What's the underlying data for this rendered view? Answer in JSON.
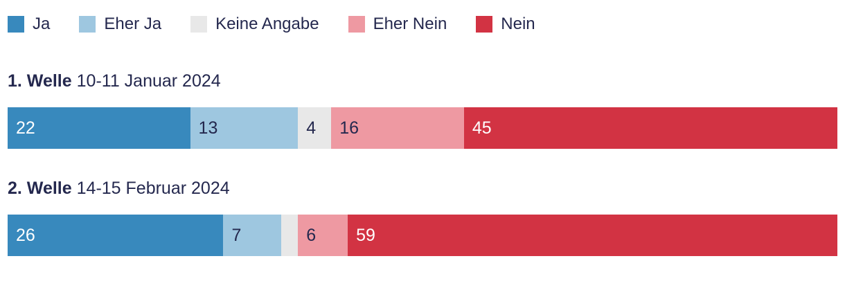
{
  "colors": {
    "text": "#24284e",
    "background": "#ffffff",
    "ja": "#3889bd",
    "eher_ja": "#9ec7e0",
    "keine_angabe": "#e8e8e8",
    "eher_nein": "#ee99a2",
    "nein": "#d23343"
  },
  "legend": {
    "items": [
      {
        "label": "Ja",
        "color": "#3889bd"
      },
      {
        "label": "Eher Ja",
        "color": "#9ec7e0"
      },
      {
        "label": "Keine Angabe",
        "color": "#e8e8e8"
      },
      {
        "label": "Eher Nein",
        "color": "#ee99a2"
      },
      {
        "label": "Nein",
        "color": "#d23343"
      }
    ]
  },
  "chart_data": {
    "type": "bar",
    "variant": "stacked-horizontal",
    "unit": "percent",
    "xlim": [
      0,
      100
    ],
    "grid": false,
    "legend_position": "top",
    "categories": [
      "Ja",
      "Eher Ja",
      "Keine Angabe",
      "Eher Nein",
      "Nein"
    ],
    "rows": [
      {
        "title_bold": "1. Welle",
        "title_rest": "10-11 Januar 2024",
        "values": [
          22,
          13,
          4,
          16,
          45
        ],
        "segments": [
          {
            "category": "Ja",
            "value": 22,
            "label": "22",
            "color": "#3889bd",
            "text_color": "#ffffff"
          },
          {
            "category": "Eher Ja",
            "value": 13,
            "label": "13",
            "color": "#9ec7e0",
            "text_color": "#24284e"
          },
          {
            "category": "Keine Angabe",
            "value": 4,
            "label": "4",
            "color": "#e8e8e8",
            "text_color": "#24284e"
          },
          {
            "category": "Eher Nein",
            "value": 16,
            "label": "16",
            "color": "#ee99a2",
            "text_color": "#24284e"
          },
          {
            "category": "Nein",
            "value": 45,
            "label": "45",
            "color": "#d23343",
            "text_color": "#ffffff"
          }
        ]
      },
      {
        "title_bold": "2. Welle",
        "title_rest": "14-15 Februar 2024",
        "values": [
          26,
          7,
          2,
          6,
          59
        ],
        "segments": [
          {
            "category": "Ja",
            "value": 26,
            "label": "26",
            "color": "#3889bd",
            "text_color": "#ffffff"
          },
          {
            "category": "Eher Ja",
            "value": 7,
            "label": "7",
            "color": "#9ec7e0",
            "text_color": "#24284e"
          },
          {
            "category": "Keine Angabe",
            "value": 2,
            "label": "",
            "color": "#e8e8e8",
            "text_color": "#24284e"
          },
          {
            "category": "Eher Nein",
            "value": 6,
            "label": "6",
            "color": "#ee99a2",
            "text_color": "#24284e"
          },
          {
            "category": "Nein",
            "value": 59,
            "label": "59",
            "color": "#d23343",
            "text_color": "#ffffff"
          }
        ]
      }
    ]
  }
}
